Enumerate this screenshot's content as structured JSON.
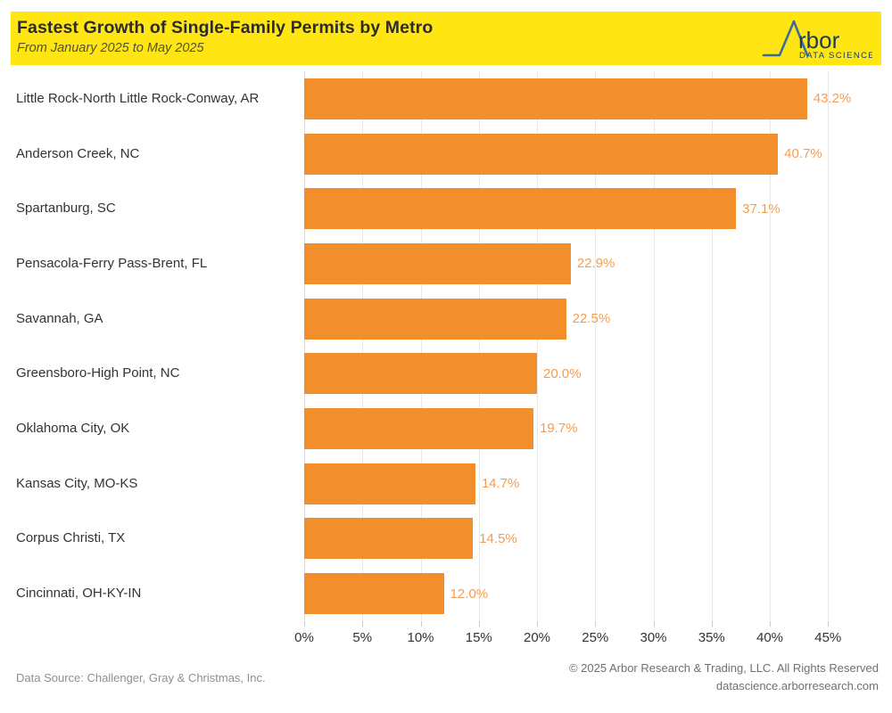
{
  "header": {
    "title": "Fastest Growth of Single-Family Permits by Metro",
    "subtitle": "From January 2025 to May 2025",
    "background_color": "#ffe512",
    "logo": {
      "brand_suffix": "rbor",
      "tagline": "DATA SCIENCE",
      "mark_color": "#3e6d9c",
      "text_color": "#1c3d63"
    }
  },
  "chart_data": {
    "type": "bar",
    "orientation": "horizontal",
    "title": "Fastest Growth of Single-Family Permits by Metro",
    "subtitle": "From January 2025 to May 2025",
    "categories": [
      "Little Rock-North Little Rock-Conway, AR",
      "Anderson Creek, NC",
      "Spartanburg, SC",
      "Pensacola-Ferry Pass-Brent, FL",
      "Savannah, GA",
      "Greensboro-High Point, NC",
      "Oklahoma City, OK",
      "Kansas City, MO-KS",
      "Corpus Christi, TX",
      "Cincinnati, OH-KY-IN"
    ],
    "values": [
      43.2,
      40.7,
      37.1,
      22.9,
      22.5,
      20.0,
      19.7,
      14.7,
      14.5,
      12.0
    ],
    "value_labels": [
      "43.2%",
      "40.7%",
      "37.1%",
      "22.9%",
      "22.5%",
      "20.0%",
      "19.7%",
      "14.7%",
      "14.5%",
      "12.0%"
    ],
    "xlabel": "",
    "ylabel": "",
    "xlim": [
      0,
      48.6
    ],
    "x_tick_values": [
      0,
      5,
      10,
      15,
      20,
      25,
      30,
      35,
      40,
      45
    ],
    "x_tick_labels": [
      "0%",
      "5%",
      "10%",
      "15%",
      "20%",
      "25%",
      "30%",
      "35%",
      "40%",
      "45%"
    ],
    "grid": true,
    "legend": false,
    "bar_color": "#f28e2b",
    "value_label_color": "#f49d51"
  },
  "footer": {
    "source": "Data Source: Challenger, Gray & Christmas, Inc.",
    "copyright": "© 2025 Arbor Research & Trading, LLC. All Rights Reserved",
    "website": "datascience.arborresearch.com"
  }
}
